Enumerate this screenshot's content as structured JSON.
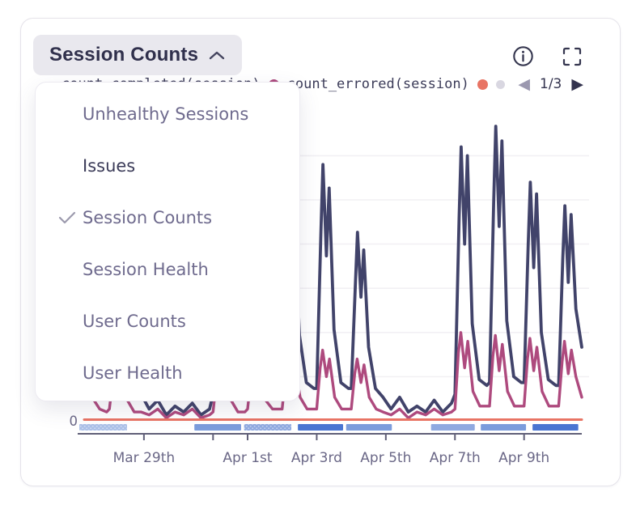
{
  "widget": {
    "selector": {
      "label": "Session Counts",
      "state": "open"
    },
    "menu": {
      "items": [
        {
          "label": "Unhealthy Sessions",
          "checked": false,
          "emphasized": false
        },
        {
          "label": "Issues",
          "checked": false,
          "emphasized": true
        },
        {
          "label": "Session Counts",
          "checked": true,
          "emphasized": false
        },
        {
          "label": "Session Health",
          "checked": false,
          "emphasized": false
        },
        {
          "label": "User Counts",
          "checked": false,
          "emphasized": false
        },
        {
          "label": "User Health",
          "checked": false,
          "emphasized": false
        }
      ]
    },
    "legend": {
      "items": [
        {
          "label": "count_completed(session)",
          "color": "#ae4a7e"
        },
        {
          "label": "count_errored(session)",
          "color": "#e87464"
        },
        {
          "label": "",
          "color": "#cfcdda"
        }
      ],
      "page_indicator": "1/3"
    }
  },
  "chart_data": {
    "type": "line",
    "title": "Session Counts",
    "x_unit": "days (day 0 = Mar 27)",
    "xlim": [
      0.27,
      14.67
    ],
    "ylim": [
      0,
      100
    ],
    "grid_values": [
      15,
      30,
      45,
      60,
      75,
      90
    ],
    "y_tick_labels": [
      "0"
    ],
    "x_ticks_days": [
      2,
      4,
      5,
      7,
      9,
      11,
      13
    ],
    "x_tick_labels": [
      {
        "day": 2,
        "label": "Mar 29th"
      },
      {
        "day": 5,
        "label": "Apr 1st"
      },
      {
        "day": 7,
        "label": "Apr 3rd"
      },
      {
        "day": 9,
        "label": "Apr 5th"
      },
      {
        "day": 11,
        "label": "Apr 7th"
      },
      {
        "day": 13,
        "label": "Apr 9th"
      }
    ],
    "series": [
      {
        "id": "sessions-total",
        "legend_label": "",
        "color": "#41436a",
        "width": 3.8,
        "points": [
          [
            0.27,
            35
          ],
          [
            0.36,
            56
          ],
          [
            0.44,
            30
          ],
          [
            0.5,
            25
          ],
          [
            0.7,
            11
          ],
          [
            0.92,
            10
          ],
          [
            1.0,
            10
          ],
          [
            1.12,
            41
          ],
          [
            1.18,
            56
          ],
          [
            1.28,
            36
          ],
          [
            1.36,
            51
          ],
          [
            1.5,
            22
          ],
          [
            1.7,
            10
          ],
          [
            1.92,
            9
          ],
          [
            2.15,
            4
          ],
          [
            2.4,
            7
          ],
          [
            2.65,
            2
          ],
          [
            2.9,
            5
          ],
          [
            3.15,
            3
          ],
          [
            3.4,
            6
          ],
          [
            3.65,
            2
          ],
          [
            3.9,
            4
          ],
          [
            4.0,
            9
          ],
          [
            4.12,
            43
          ],
          [
            4.18,
            58
          ],
          [
            4.28,
            38
          ],
          [
            4.36,
            53
          ],
          [
            4.5,
            23
          ],
          [
            4.7,
            11
          ],
          [
            4.92,
            9
          ],
          [
            5.0,
            10
          ],
          [
            5.12,
            49
          ],
          [
            5.18,
            66
          ],
          [
            5.28,
            43
          ],
          [
            5.36,
            60
          ],
          [
            5.5,
            26
          ],
          [
            5.7,
            12
          ],
          [
            5.92,
            10
          ],
          [
            6.0,
            10
          ],
          [
            6.12,
            53
          ],
          [
            6.18,
            72
          ],
          [
            6.28,
            46
          ],
          [
            6.36,
            66
          ],
          [
            6.5,
            29
          ],
          [
            6.7,
            13
          ],
          [
            6.92,
            11
          ],
          [
            7.0,
            11
          ],
          [
            7.12,
            64
          ],
          [
            7.18,
            87
          ],
          [
            7.28,
            56
          ],
          [
            7.36,
            79
          ],
          [
            7.5,
            31
          ],
          [
            7.7,
            13
          ],
          [
            7.92,
            11
          ],
          [
            8.0,
            11
          ],
          [
            8.12,
            47
          ],
          [
            8.18,
            64
          ],
          [
            8.28,
            42
          ],
          [
            8.36,
            58
          ],
          [
            8.5,
            25
          ],
          [
            8.7,
            11
          ],
          [
            8.92,
            8
          ],
          [
            9.15,
            4
          ],
          [
            9.4,
            8
          ],
          [
            9.65,
            3
          ],
          [
            9.9,
            5
          ],
          [
            10.15,
            3
          ],
          [
            10.4,
            7
          ],
          [
            10.65,
            3
          ],
          [
            10.9,
            6
          ],
          [
            11.0,
            9
          ],
          [
            11.12,
            69
          ],
          [
            11.18,
            93
          ],
          [
            11.28,
            60
          ],
          [
            11.36,
            90
          ],
          [
            11.5,
            33
          ],
          [
            11.7,
            14
          ],
          [
            11.92,
            12
          ],
          [
            12.0,
            13
          ],
          [
            12.12,
            74
          ],
          [
            12.18,
            100
          ],
          [
            12.28,
            66
          ],
          [
            12.36,
            95
          ],
          [
            12.5,
            34
          ],
          [
            12.7,
            15
          ],
          [
            12.92,
            13
          ],
          [
            13.0,
            13
          ],
          [
            13.12,
            60
          ],
          [
            13.18,
            81
          ],
          [
            13.28,
            52
          ],
          [
            13.36,
            77
          ],
          [
            13.5,
            30
          ],
          [
            13.7,
            14
          ],
          [
            13.92,
            12
          ],
          [
            14.0,
            12
          ],
          [
            14.12,
            55
          ],
          [
            14.18,
            73
          ],
          [
            14.28,
            47
          ],
          [
            14.36,
            70
          ],
          [
            14.5,
            38
          ],
          [
            14.67,
            25
          ]
        ]
      },
      {
        "id": "count_completed",
        "legend_label": "count_completed(session)",
        "color": "#ae4a7e",
        "width": 3.4,
        "points": [
          [
            0.27,
            12
          ],
          [
            0.37,
            18
          ],
          [
            0.5,
            8
          ],
          [
            0.72,
            4
          ],
          [
            0.92,
            3
          ],
          [
            1.0,
            4
          ],
          [
            1.1,
            14
          ],
          [
            1.17,
            18
          ],
          [
            1.28,
            11
          ],
          [
            1.37,
            16
          ],
          [
            1.52,
            7
          ],
          [
            1.72,
            3
          ],
          [
            1.92,
            3
          ],
          [
            2.15,
            2
          ],
          [
            2.4,
            4
          ],
          [
            2.65,
            1
          ],
          [
            2.9,
            3
          ],
          [
            3.15,
            2
          ],
          [
            3.4,
            4
          ],
          [
            3.65,
            1
          ],
          [
            3.9,
            2
          ],
          [
            4.0,
            3
          ],
          [
            4.1,
            14
          ],
          [
            4.17,
            18
          ],
          [
            4.28,
            11
          ],
          [
            4.37,
            16
          ],
          [
            4.52,
            7
          ],
          [
            4.72,
            3
          ],
          [
            4.92,
            3
          ],
          [
            5.0,
            4
          ],
          [
            5.1,
            15
          ],
          [
            5.17,
            20
          ],
          [
            5.28,
            12
          ],
          [
            5.37,
            18
          ],
          [
            5.52,
            7
          ],
          [
            5.72,
            4
          ],
          [
            5.92,
            4
          ],
          [
            6.0,
            4
          ],
          [
            6.1,
            16
          ],
          [
            6.17,
            21
          ],
          [
            6.28,
            13
          ],
          [
            6.37,
            19
          ],
          [
            6.52,
            8
          ],
          [
            6.72,
            4
          ],
          [
            6.92,
            4
          ],
          [
            7.0,
            4
          ],
          [
            7.1,
            18
          ],
          [
            7.17,
            24
          ],
          [
            7.28,
            15
          ],
          [
            7.37,
            21
          ],
          [
            7.52,
            8
          ],
          [
            7.72,
            4
          ],
          [
            7.92,
            4
          ],
          [
            8.0,
            4
          ],
          [
            8.1,
            16
          ],
          [
            8.17,
            21
          ],
          [
            8.28,
            13
          ],
          [
            8.37,
            19
          ],
          [
            8.52,
            8
          ],
          [
            8.72,
            4
          ],
          [
            8.92,
            3
          ],
          [
            9.15,
            2
          ],
          [
            9.4,
            4
          ],
          [
            9.65,
            1
          ],
          [
            9.9,
            3
          ],
          [
            10.15,
            2
          ],
          [
            10.4,
            4
          ],
          [
            10.65,
            2
          ],
          [
            10.9,
            3
          ],
          [
            11.0,
            4
          ],
          [
            11.1,
            23
          ],
          [
            11.17,
            30
          ],
          [
            11.28,
            18
          ],
          [
            11.37,
            27
          ],
          [
            11.52,
            10
          ],
          [
            11.72,
            5
          ],
          [
            11.92,
            5
          ],
          [
            12.0,
            5
          ],
          [
            12.1,
            22
          ],
          [
            12.17,
            29
          ],
          [
            12.28,
            17
          ],
          [
            12.37,
            26
          ],
          [
            12.52,
            10
          ],
          [
            12.72,
            5
          ],
          [
            12.92,
            5
          ],
          [
            13.0,
            5
          ],
          [
            13.1,
            21
          ],
          [
            13.17,
            28
          ],
          [
            13.28,
            17
          ],
          [
            13.37,
            25
          ],
          [
            13.52,
            10
          ],
          [
            13.72,
            5
          ],
          [
            13.92,
            5
          ],
          [
            14.0,
            5
          ],
          [
            14.1,
            20
          ],
          [
            14.17,
            27
          ],
          [
            14.28,
            16
          ],
          [
            14.37,
            24
          ],
          [
            14.5,
            15
          ],
          [
            14.67,
            8
          ]
        ]
      },
      {
        "id": "count_errored",
        "legend_label": "count_errored(session)",
        "color": "#e87464",
        "width": 3,
        "points": [
          [
            0.27,
            0.4
          ],
          [
            14.67,
            0.4
          ]
        ]
      }
    ],
    "segments_bar": {
      "colors": {
        "light": "#abc0e8",
        "mediumlight": "#8fa9e0",
        "medium": "#7b9cdc",
        "dark": "#4a75d2"
      },
      "segments": [
        {
          "start": 0.0,
          "end": 0.095,
          "shade": "light",
          "textured": true
        },
        {
          "start": 0.229,
          "end": 0.322,
          "shade": "medium",
          "textured": false
        },
        {
          "start": 0.328,
          "end": 0.422,
          "shade": "mediumlight",
          "textured": true
        },
        {
          "start": 0.435,
          "end": 0.525,
          "shade": "dark",
          "textured": false
        },
        {
          "start": 0.531,
          "end": 0.622,
          "shade": "medium",
          "textured": false
        },
        {
          "start": 0.7,
          "end": 0.787,
          "shade": "mediumlight",
          "textured": false
        },
        {
          "start": 0.799,
          "end": 0.889,
          "shade": "medium",
          "textured": false
        },
        {
          "start": 0.902,
          "end": 0.993,
          "shade": "dark",
          "textured": false
        }
      ]
    },
    "legend_position": "top",
    "grid": "horizontal-only"
  }
}
